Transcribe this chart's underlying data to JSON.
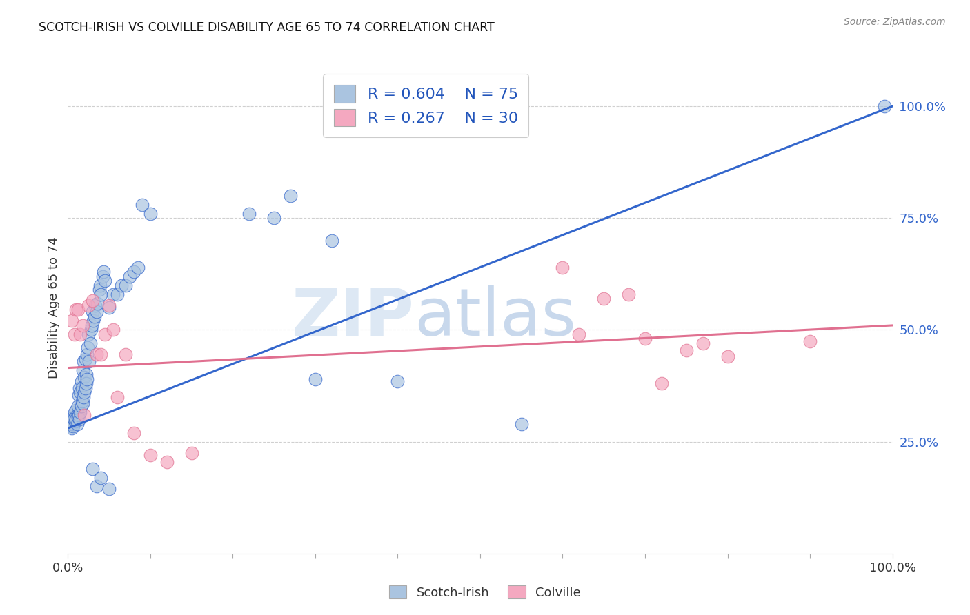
{
  "title": "SCOTCH-IRISH VS COLVILLE DISABILITY AGE 65 TO 74 CORRELATION CHART",
  "source": "Source: ZipAtlas.com",
  "ylabel": "Disability Age 65 to 74",
  "y_tick_labels": [
    "25.0%",
    "50.0%",
    "75.0%",
    "100.0%"
  ],
  "y_tick_positions": [
    25.0,
    50.0,
    75.0,
    100.0
  ],
  "blue_color": "#aac4e0",
  "pink_color": "#f4a8c0",
  "line_blue": "#3366cc",
  "line_pink": "#e07090",
  "legend_text_color": "#2255bb",
  "blue_scatter": [
    [
      0.2,
      28.5
    ],
    [
      0.3,
      29.5
    ],
    [
      0.4,
      30.0
    ],
    [
      0.5,
      28.0
    ],
    [
      0.6,
      30.5
    ],
    [
      0.7,
      29.0
    ],
    [
      0.8,
      31.5
    ],
    [
      0.9,
      30.5
    ],
    [
      1.0,
      32.0
    ],
    [
      1.1,
      31.0
    ],
    [
      1.2,
      33.0
    ],
    [
      1.3,
      35.5
    ],
    [
      1.4,
      37.0
    ],
    [
      1.5,
      36.0
    ],
    [
      1.6,
      38.5
    ],
    [
      1.7,
      37.0
    ],
    [
      1.8,
      41.0
    ],
    [
      1.9,
      43.0
    ],
    [
      2.0,
      39.5
    ],
    [
      2.1,
      43.5
    ],
    [
      2.2,
      40.0
    ],
    [
      2.3,
      44.5
    ],
    [
      2.4,
      46.0
    ],
    [
      2.5,
      49.0
    ],
    [
      2.6,
      43.0
    ],
    [
      2.7,
      47.0
    ],
    [
      2.8,
      50.0
    ],
    [
      2.9,
      51.0
    ],
    [
      3.0,
      54.0
    ],
    [
      3.1,
      52.0
    ],
    [
      3.2,
      53.0
    ],
    [
      3.3,
      55.5
    ],
    [
      3.5,
      54.0
    ],
    [
      3.6,
      56.0
    ],
    [
      3.8,
      59.0
    ],
    [
      3.9,
      60.0
    ],
    [
      4.0,
      58.0
    ],
    [
      4.2,
      62.0
    ],
    [
      4.3,
      63.0
    ],
    [
      4.5,
      61.0
    ],
    [
      5.0,
      55.0
    ],
    [
      5.5,
      58.0
    ],
    [
      6.0,
      58.0
    ],
    [
      6.5,
      60.0
    ],
    [
      7.0,
      60.0
    ],
    [
      7.5,
      62.0
    ],
    [
      8.0,
      63.0
    ],
    [
      8.5,
      64.0
    ],
    [
      0.5,
      29.0
    ],
    [
      0.6,
      28.5
    ],
    [
      0.7,
      30.0
    ],
    [
      0.9,
      29.5
    ],
    [
      1.0,
      30.0
    ],
    [
      1.1,
      29.0
    ],
    [
      1.2,
      30.5
    ],
    [
      1.3,
      31.0
    ],
    [
      1.4,
      30.0
    ],
    [
      1.5,
      31.5
    ],
    [
      1.6,
      33.0
    ],
    [
      1.7,
      34.0
    ],
    [
      1.8,
      33.5
    ],
    [
      1.9,
      35.0
    ],
    [
      2.0,
      36.0
    ],
    [
      2.1,
      37.0
    ],
    [
      2.2,
      38.0
    ],
    [
      2.3,
      39.0
    ],
    [
      3.0,
      19.0
    ],
    [
      3.5,
      15.0
    ],
    [
      4.0,
      17.0
    ],
    [
      5.0,
      14.5
    ],
    [
      9.0,
      78.0
    ],
    [
      10.0,
      76.0
    ],
    [
      30.0,
      39.0
    ],
    [
      40.0,
      38.5
    ],
    [
      55.0,
      29.0
    ],
    [
      99.0,
      100.0
    ],
    [
      22.0,
      76.0
    ],
    [
      25.0,
      75.0
    ],
    [
      27.0,
      80.0
    ],
    [
      32.0,
      70.0
    ]
  ],
  "pink_scatter": [
    [
      0.5,
      52.0
    ],
    [
      0.8,
      49.0
    ],
    [
      1.0,
      54.5
    ],
    [
      1.2,
      54.5
    ],
    [
      1.5,
      49.0
    ],
    [
      1.8,
      51.0
    ],
    [
      2.0,
      31.0
    ],
    [
      2.5,
      55.5
    ],
    [
      3.0,
      56.5
    ],
    [
      3.5,
      44.5
    ],
    [
      4.0,
      44.5
    ],
    [
      4.5,
      49.0
    ],
    [
      5.0,
      55.5
    ],
    [
      5.5,
      50.0
    ],
    [
      6.0,
      35.0
    ],
    [
      7.0,
      44.5
    ],
    [
      8.0,
      27.0
    ],
    [
      10.0,
      22.0
    ],
    [
      12.0,
      20.5
    ],
    [
      15.0,
      22.5
    ],
    [
      60.0,
      64.0
    ],
    [
      62.0,
      49.0
    ],
    [
      65.0,
      57.0
    ],
    [
      68.0,
      58.0
    ],
    [
      70.0,
      48.0
    ],
    [
      72.0,
      38.0
    ],
    [
      75.0,
      45.5
    ],
    [
      77.0,
      47.0
    ],
    [
      80.0,
      44.0
    ],
    [
      90.0,
      47.5
    ]
  ],
  "xlim": [
    0.0,
    100.0
  ],
  "ylim": [
    0.0,
    110.0
  ],
  "blue_line": {
    "x0": 0.0,
    "y0": 28.0,
    "x1": 100.0,
    "y1": 100.0
  },
  "pink_line": {
    "x0": 0.0,
    "y0": 41.5,
    "x1": 100.0,
    "y1": 51.0
  }
}
